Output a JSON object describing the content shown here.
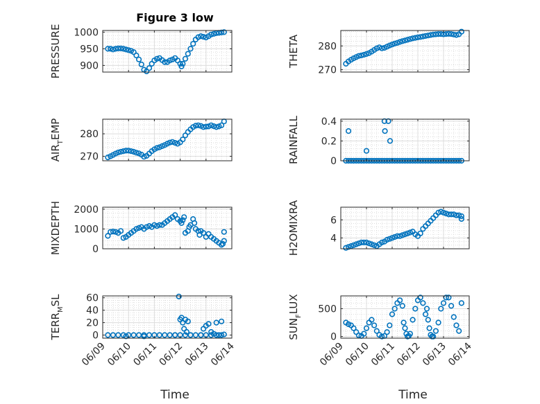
{
  "figure": {
    "title": "Figure 3 low",
    "xlabel": "Time",
    "marker_color": "#0072BD",
    "grid": "on, major and minor (dotted)"
  },
  "chart_data": [
    {
      "id": "pressure",
      "type": "scatter",
      "marker": "open-circle",
      "title": "Figure 3 low",
      "ylabel": "PRESSURE",
      "ylim": [
        880,
        1005
      ],
      "yticks": [
        900,
        950,
        1000
      ],
      "ytick_labels": [
        "900",
        "950",
        "1000"
      ],
      "xlim": [
        0,
        5
      ],
      "xticks": [
        0,
        1,
        2,
        3,
        4,
        5
      ],
      "xtick_labels": [],
      "x": [
        0.2,
        0.3,
        0.4,
        0.5,
        0.6,
        0.7,
        0.8,
        0.9,
        1.0,
        1.1,
        1.2,
        1.3,
        1.4,
        1.5,
        1.6,
        1.7,
        1.8,
        1.9,
        2.0,
        2.1,
        2.2,
        2.3,
        2.4,
        2.5,
        2.6,
        2.7,
        2.8,
        2.9,
        3.0,
        3.05,
        3.1,
        3.2,
        3.3,
        3.4,
        3.5,
        3.6,
        3.7,
        3.8,
        3.9,
        4.0,
        4.1,
        4.2,
        4.3,
        4.4,
        4.5,
        4.6,
        4.7
      ],
      "y": [
        950,
        950,
        948,
        950,
        951,
        951,
        950,
        948,
        946,
        944,
        940,
        930,
        918,
        903,
        887,
        882,
        892,
        905,
        915,
        920,
        922,
        916,
        910,
        910,
        915,
        918,
        922,
        915,
        905,
        897,
        905,
        920,
        935,
        950,
        965,
        978,
        985,
        988,
        986,
        984,
        988,
        993,
        995,
        997,
        998,
        999,
        1000
      ]
    },
    {
      "id": "theta",
      "type": "scatter",
      "marker": "open-circle",
      "ylabel": "THETA",
      "ylim": [
        269,
        286.5
      ],
      "yticks": [
        270,
        280
      ],
      "ytick_labels": [
        "270",
        "280"
      ],
      "xlim": [
        0,
        5
      ],
      "xticks": [
        0,
        1,
        2,
        3,
        4,
        5
      ],
      "xtick_labels": [],
      "x": [
        0.2,
        0.3,
        0.4,
        0.5,
        0.6,
        0.7,
        0.8,
        0.9,
        1.0,
        1.1,
        1.2,
        1.3,
        1.4,
        1.5,
        1.6,
        1.7,
        1.8,
        1.9,
        2.0,
        2.1,
        2.2,
        2.3,
        2.4,
        2.5,
        2.6,
        2.7,
        2.8,
        2.9,
        3.0,
        3.1,
        3.2,
        3.3,
        3.4,
        3.5,
        3.6,
        3.7,
        3.8,
        3.9,
        4.0,
        4.1,
        4.2,
        4.3,
        4.4,
        4.5,
        4.6,
        4.7
      ],
      "y": [
        272.5,
        273.5,
        274.2,
        274.8,
        275.3,
        275.8,
        276.0,
        276.3,
        276.6,
        277.0,
        277.6,
        278.3,
        279.0,
        279.4,
        279.0,
        279.2,
        279.7,
        280.2,
        280.6,
        281.0,
        281.3,
        281.7,
        282.0,
        282.3,
        282.6,
        282.9,
        283.2,
        283.4,
        283.6,
        283.8,
        284.0,
        284.2,
        284.4,
        284.6,
        284.8,
        284.9,
        285.0,
        285.0,
        284.9,
        285.0,
        285.1,
        285.0,
        284.8,
        284.6,
        284.9,
        286.0
      ]
    },
    {
      "id": "air_temp",
      "type": "scatter",
      "marker": "open-circle",
      "ylabel": "AIR",
      "ylabel_sub": "T",
      "ylabel_tail": "EMP",
      "ylim": [
        268,
        286.5
      ],
      "yticks": [
        270,
        280
      ],
      "ytick_labels": [
        "270",
        "280"
      ],
      "xlim": [
        0,
        5
      ],
      "xticks": [
        0,
        1,
        2,
        3,
        4,
        5
      ],
      "xtick_labels": [],
      "x": [
        0.2,
        0.3,
        0.4,
        0.5,
        0.6,
        0.7,
        0.8,
        0.9,
        1.0,
        1.1,
        1.2,
        1.3,
        1.4,
        1.5,
        1.6,
        1.7,
        1.8,
        1.9,
        2.0,
        2.1,
        2.2,
        2.3,
        2.4,
        2.5,
        2.6,
        2.7,
        2.8,
        2.9,
        3.0,
        3.1,
        3.2,
        3.3,
        3.4,
        3.5,
        3.6,
        3.7,
        3.8,
        3.9,
        4.0,
        4.1,
        4.2,
        4.3,
        4.4,
        4.5,
        4.6,
        4.7
      ],
      "y": [
        269.5,
        270.0,
        270.6,
        271.2,
        271.7,
        272.0,
        272.3,
        272.5,
        272.5,
        272.3,
        272.0,
        271.6,
        271.3,
        270.7,
        269.8,
        270.2,
        271.2,
        272.3,
        273.1,
        273.7,
        274.0,
        274.5,
        275.0,
        275.6,
        276.1,
        276.4,
        276.0,
        275.6,
        276.2,
        277.5,
        279.3,
        280.8,
        282.0,
        283.0,
        283.6,
        283.8,
        283.5,
        283.0,
        283.2,
        283.3,
        283.8,
        283.4,
        283.0,
        283.3,
        283.8,
        285.5
      ]
    },
    {
      "id": "rainfall",
      "type": "scatter",
      "marker": "open-circle",
      "ylabel": "RAINFALL",
      "ylim": [
        0,
        0.42
      ],
      "yticks": [
        0,
        0.2,
        0.4
      ],
      "ytick_labels": [
        "0",
        "0.2",
        "0.4"
      ],
      "xlim": [
        0,
        5
      ],
      "xticks": [
        0,
        1,
        2,
        3,
        4,
        5
      ],
      "xtick_labels": [],
      "x": [
        0.2,
        0.3,
        0.4,
        0.5,
        0.6,
        0.7,
        0.8,
        0.9,
        1.0,
        1.1,
        1.2,
        1.3,
        1.4,
        1.5,
        1.6,
        1.7,
        1.8,
        1.9,
        2.0,
        2.1,
        2.2,
        2.3,
        2.4,
        2.5,
        2.6,
        2.7,
        2.8,
        2.9,
        3.0,
        3.1,
        3.2,
        3.3,
        3.4,
        3.5,
        3.6,
        3.7,
        3.8,
        3.9,
        4.0,
        4.1,
        4.2,
        4.3,
        4.4,
        4.5,
        4.6,
        4.7,
        0.3,
        1.0,
        1.7,
        1.72,
        1.85,
        1.92
      ],
      "y": [
        0,
        0,
        0,
        0,
        0,
        0,
        0,
        0,
        0,
        0,
        0,
        0,
        0,
        0,
        0,
        0,
        0,
        0,
        0,
        0,
        0,
        0,
        0,
        0,
        0,
        0,
        0,
        0,
        0,
        0,
        0,
        0,
        0,
        0,
        0,
        0,
        0,
        0,
        0,
        0,
        0,
        0,
        0,
        0,
        0,
        0,
        0.3,
        0.1,
        0.4,
        0.3,
        0.4,
        0.2
      ]
    },
    {
      "id": "mixdepth",
      "type": "scatter",
      "marker": "open-circle",
      "ylabel": "MIXDEPTH",
      "ylim": [
        0,
        2100
      ],
      "yticks": [
        0,
        1000,
        2000
      ],
      "ytick_labels": [
        "0",
        "1000",
        "2000"
      ],
      "xlim": [
        0,
        5
      ],
      "xticks": [
        0,
        1,
        2,
        3,
        4,
        5
      ],
      "xtick_labels": [],
      "x": [
        0.2,
        0.3,
        0.4,
        0.5,
        0.6,
        0.7,
        0.8,
        0.9,
        1.0,
        1.1,
        1.2,
        1.3,
        1.4,
        1.5,
        1.6,
        1.7,
        1.8,
        1.9,
        2.0,
        2.1,
        2.2,
        2.3,
        2.4,
        2.5,
        2.6,
        2.7,
        2.8,
        2.9,
        3.0,
        3.05,
        3.1,
        3.15,
        3.2,
        3.3,
        3.35,
        3.4,
        3.5,
        3.55,
        3.6,
        3.7,
        3.75,
        3.8,
        3.9,
        4.0,
        4.1,
        4.2,
        4.3,
        4.4,
        4.5,
        4.6,
        4.65,
        4.7,
        4.7
      ],
      "y": [
        650,
        850,
        870,
        850,
        800,
        900,
        550,
        600,
        700,
        800,
        900,
        1000,
        1050,
        1100,
        1000,
        1100,
        1150,
        1100,
        1200,
        1150,
        1200,
        1200,
        1300,
        1400,
        1500,
        1600,
        1700,
        1500,
        1400,
        1300,
        1450,
        1600,
        800,
        900,
        1100,
        1200,
        1500,
        1300,
        1000,
        900,
        700,
        900,
        800,
        600,
        750,
        600,
        500,
        400,
        300,
        200,
        250,
        850,
        400
      ]
    },
    {
      "id": "h2omixra",
      "type": "scatter",
      "marker": "open-circle",
      "ylabel": "H2OMIXRA",
      "ylim": [
        2.8,
        7.4
      ],
      "yticks": [
        4,
        6
      ],
      "ytick_labels": [
        "4",
        "6"
      ],
      "xlim": [
        0,
        5
      ],
      "xticks": [
        0,
        1,
        2,
        3,
        4,
        5
      ],
      "xtick_labels": [],
      "x": [
        0.2,
        0.3,
        0.4,
        0.5,
        0.6,
        0.7,
        0.8,
        0.9,
        1.0,
        1.1,
        1.2,
        1.3,
        1.4,
        1.5,
        1.6,
        1.7,
        1.8,
        1.9,
        2.0,
        2.1,
        2.2,
        2.3,
        2.4,
        2.5,
        2.6,
        2.7,
        2.8,
        2.9,
        3.0,
        3.1,
        3.2,
        3.3,
        3.4,
        3.5,
        3.6,
        3.7,
        3.8,
        3.9,
        4.0,
        4.1,
        4.2,
        4.3,
        4.4,
        4.5,
        4.6,
        4.7,
        4.7
      ],
      "y": [
        2.9,
        3.0,
        3.1,
        3.2,
        3.3,
        3.4,
        3.5,
        3.5,
        3.5,
        3.4,
        3.3,
        3.2,
        3.1,
        3.3,
        3.5,
        3.6,
        3.8,
        3.9,
        4.0,
        4.1,
        4.2,
        4.2,
        4.3,
        4.4,
        4.5,
        4.6,
        4.7,
        4.4,
        4.2,
        4.5,
        5.0,
        5.3,
        5.6,
        5.9,
        6.2,
        6.5,
        6.8,
        6.9,
        6.8,
        6.7,
        6.6,
        6.6,
        6.6,
        6.5,
        6.5,
        6.4,
        6.1
      ]
    },
    {
      "id": "terr_msl",
      "type": "scatter",
      "marker": "open-circle",
      "ylabel": "TERR",
      "ylabel_sub": "M",
      "ylabel_tail": "SL",
      "ylim": [
        -5,
        63
      ],
      "yticks": [
        0,
        20,
        40,
        60
      ],
      "ytick_labels": [
        "0",
        "20",
        "40",
        "60"
      ],
      "xlim": [
        0,
        5
      ],
      "xticks": [
        0,
        1,
        2,
        3,
        4,
        5
      ],
      "xtick_labels": [],
      "x": [
        0.2,
        0.4,
        0.6,
        0.8,
        1.0,
        1.2,
        1.4,
        1.6,
        1.8,
        2.0,
        2.2,
        2.4,
        2.6,
        2.8,
        3.0,
        3.2,
        3.4,
        3.6,
        3.8,
        4.0,
        4.2,
        4.4,
        4.6,
        0.9,
        1.6,
        2.8,
        2.95,
        3.0,
        3.05,
        3.1,
        3.15,
        3.2,
        3.25,
        3.3,
        3.4,
        3.8,
        3.9,
        4.0,
        4.1,
        4.2,
        4.3,
        4.4,
        4.5,
        4.6,
        4.7
      ],
      "y": [
        0,
        0,
        0,
        0,
        0,
        0,
        0,
        0,
        0,
        0,
        0,
        0,
        0,
        0,
        0,
        0,
        0,
        0,
        0,
        0,
        0,
        0,
        0,
        -2,
        -2,
        0,
        62,
        25,
        28,
        20,
        10,
        25,
        5,
        22,
        0,
        0,
        10,
        15,
        18,
        5,
        2,
        20,
        0,
        22,
        1
      ]
    },
    {
      "id": "sun_flux",
      "type": "scatter",
      "marker": "open-circle",
      "ylabel": "SUN",
      "ylabel_sub": "F",
      "ylabel_tail": "LUX",
      "ylim": [
        -30,
        730
      ],
      "yticks": [
        0,
        500
      ],
      "ytick_labels": [
        "0",
        "500"
      ],
      "xlim": [
        0,
        5
      ],
      "xticks": [
        0,
        1,
        2,
        3,
        4,
        5
      ],
      "xtick_labels": [
        "06/09",
        "06/10",
        "06/11",
        "06/12",
        "06/13",
        "06/14"
      ],
      "xlabel": "Time",
      "x": [
        0.2,
        0.3,
        0.4,
        0.5,
        0.6,
        0.7,
        0.8,
        0.9,
        1.0,
        1.1,
        1.2,
        1.3,
        1.4,
        1.5,
        1.6,
        1.7,
        1.8,
        1.9,
        2.0,
        2.1,
        2.2,
        2.3,
        2.4,
        2.45,
        2.5,
        2.55,
        2.6,
        2.65,
        2.7,
        2.8,
        2.9,
        3.0,
        3.1,
        3.2,
        3.3,
        3.35,
        3.4,
        3.45,
        3.5,
        3.55,
        3.6,
        3.7,
        3.8,
        3.9,
        4.0,
        4.1,
        4.2,
        4.3,
        4.4,
        4.5,
        4.6,
        4.7
      ],
      "y": [
        250,
        220,
        200,
        150,
        80,
        20,
        10,
        50,
        150,
        250,
        300,
        200,
        100,
        30,
        0,
        10,
        80,
        200,
        400,
        500,
        600,
        650,
        550,
        250,
        150,
        50,
        0,
        10,
        50,
        300,
        500,
        650,
        700,
        600,
        400,
        500,
        300,
        150,
        30,
        0,
        0,
        100,
        250,
        500,
        600,
        700,
        700,
        550,
        350,
        200,
        100,
        600
      ]
    }
  ]
}
